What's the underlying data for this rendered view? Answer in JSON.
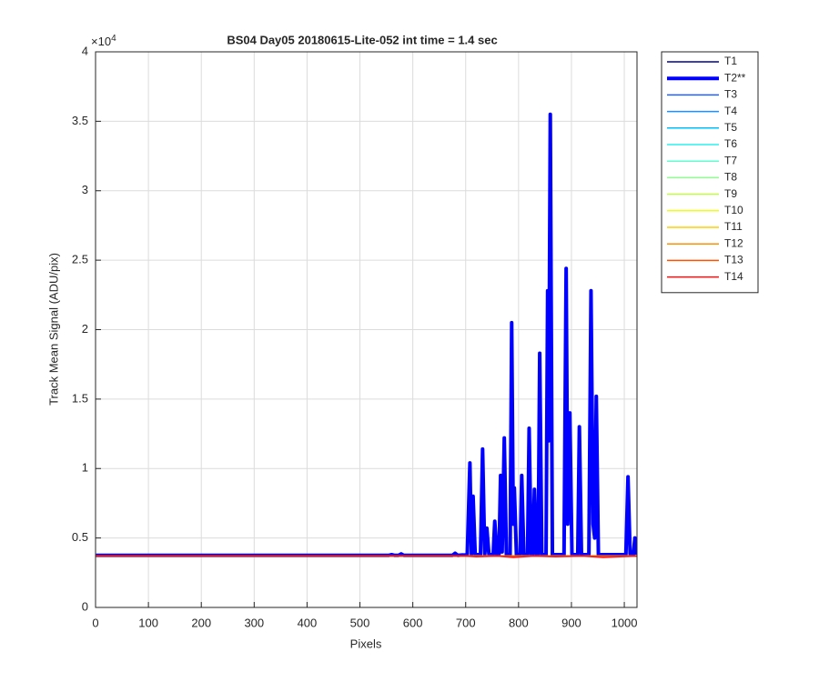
{
  "chart_data": {
    "type": "line",
    "title": "BS04 Day05 20180615-Lite-052 int time = 1.4 sec",
    "x_label": "Pixels",
    "y_label": "Track Mean Signal (ADU/pix)",
    "y_multiplier": "×10",
    "y_multiplier_exponent": "4",
    "xlim": [
      0,
      1024
    ],
    "ylim": [
      0,
      4
    ],
    "xticks": [
      0,
      100,
      200,
      300,
      400,
      500,
      600,
      700,
      800,
      900,
      1000
    ],
    "yticks": [
      0,
      0.5,
      1,
      1.5,
      2,
      2.5,
      3,
      3.5,
      4
    ],
    "grid": true,
    "legend": "outside-right",
    "series": [
      {
        "name": "T1",
        "color": "#00008f",
        "width": 1.5,
        "x": [
          1,
          1024
        ],
        "values": [
          0.37,
          0.37
        ]
      },
      {
        "name": "T2**",
        "color": "#0000ff",
        "width": 4,
        "x": [
          1,
          555,
          560,
          565,
          573,
          578,
          583,
          675,
          680,
          685,
          703,
          708,
          711,
          714,
          718,
          728,
          732,
          736,
          740,
          744,
          752,
          755,
          759,
          763,
          766,
          769,
          773,
          777,
          784,
          787,
          790,
          792,
          796,
          803,
          806,
          810,
          817,
          820,
          824,
          827,
          830,
          834,
          837,
          840,
          844,
          852,
          855,
          857,
          860,
          864,
          886,
          890,
          893,
          897,
          901,
          912,
          915,
          919,
          933,
          937,
          941,
          944,
          947,
          951,
          1003,
          1007,
          1011,
          1017,
          1020,
          1024
        ],
        "values": [
          0.375,
          0.375,
          0.38,
          0.375,
          0.375,
          0.385,
          0.375,
          0.375,
          0.39,
          0.375,
          0.38,
          1.04,
          0.38,
          0.8,
          0.38,
          0.38,
          1.14,
          0.38,
          0.57,
          0.38,
          0.38,
          0.62,
          0.38,
          0.38,
          0.95,
          0.4,
          1.22,
          0.38,
          0.38,
          2.05,
          0.6,
          0.86,
          0.38,
          0.38,
          0.95,
          0.38,
          0.38,
          1.29,
          0.38,
          0.38,
          0.85,
          0.38,
          0.38,
          1.83,
          0.38,
          0.38,
          2.28,
          1.2,
          3.55,
          0.38,
          0.38,
          2.44,
          0.6,
          1.4,
          0.38,
          0.38,
          1.3,
          0.38,
          0.38,
          2.28,
          0.6,
          0.5,
          1.52,
          0.38,
          0.38,
          0.94,
          0.38,
          0.38,
          0.5,
          0.38
        ]
      },
      {
        "name": "T3",
        "color": "#1f5fff",
        "width": 1.5,
        "x": [
          1,
          1024
        ],
        "values": [
          0.37,
          0.37
        ]
      },
      {
        "name": "T4",
        "color": "#1f8fff",
        "width": 1.5,
        "x": [
          1,
          1024
        ],
        "values": [
          0.37,
          0.37
        ]
      },
      {
        "name": "T5",
        "color": "#00bfff",
        "width": 1.5,
        "x": [
          1,
          1024
        ],
        "values": [
          0.37,
          0.37
        ]
      },
      {
        "name": "T6",
        "color": "#2fefef",
        "width": 1.5,
        "x": [
          1,
          1024
        ],
        "values": [
          0.37,
          0.37
        ]
      },
      {
        "name": "T7",
        "color": "#60ffcf",
        "width": 1.5,
        "x": [
          1,
          1024
        ],
        "values": [
          0.37,
          0.37
        ]
      },
      {
        "name": "T8",
        "color": "#8fff8f",
        "width": 1.5,
        "x": [
          1,
          1024
        ],
        "values": [
          0.37,
          0.37
        ]
      },
      {
        "name": "T9",
        "color": "#bfff40",
        "width": 1.5,
        "x": [
          1,
          1024
        ],
        "values": [
          0.37,
          0.37
        ]
      },
      {
        "name": "T10",
        "color": "#efff10",
        "width": 1.5,
        "x": [
          1,
          1024
        ],
        "values": [
          0.37,
          0.37
        ]
      },
      {
        "name": "T11",
        "color": "#ffcf00",
        "width": 1.5,
        "x": [
          1,
          1024
        ],
        "values": [
          0.37,
          0.37
        ]
      },
      {
        "name": "T12",
        "color": "#ff9000",
        "width": 1.5,
        "x": [
          1,
          1024
        ],
        "values": [
          0.37,
          0.37
        ]
      },
      {
        "name": "T13",
        "color": "#ff5000",
        "width": 1.5,
        "x": [
          1,
          1024
        ],
        "values": [
          0.37,
          0.37
        ]
      },
      {
        "name": "T14",
        "color": "#ff1010",
        "width": 1.5,
        "x": [
          1,
          700,
          720,
          760,
          790,
          830,
          870,
          920,
          960,
          1024
        ],
        "values": [
          0.37,
          0.37,
          0.365,
          0.37,
          0.36,
          0.37,
          0.365,
          0.37,
          0.36,
          0.37
        ]
      }
    ]
  }
}
